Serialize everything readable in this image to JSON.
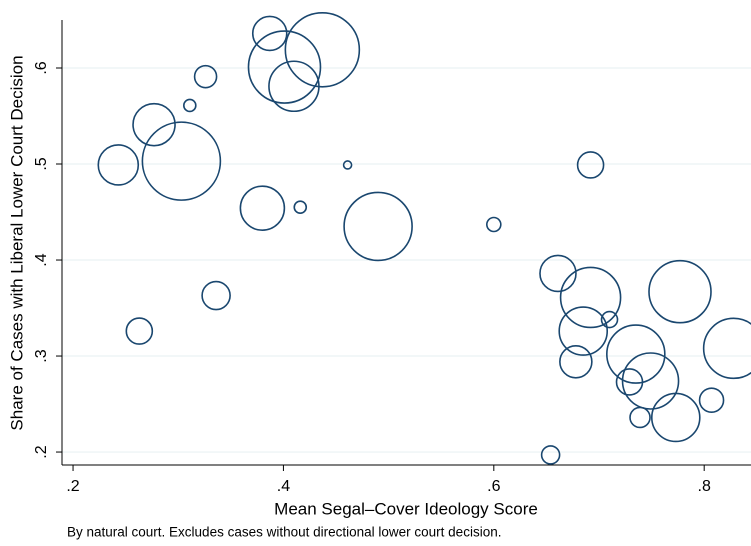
{
  "chart_data": {
    "type": "scatter",
    "x_label": "Mean Segal–Cover Ideology Score",
    "y_label": "Share of Cases with Liberal Lower Court Decision",
    "note": "By natural court. Excludes cases without directional lower court decision.",
    "color": "#1a476f",
    "grid": true,
    "xlim": [
      0.1895,
      0.8445
    ],
    "ylim": [
      0.1865,
      0.65
    ],
    "xticks": [
      {
        "value": 0.2,
        "label": ".2"
      },
      {
        "value": 0.4,
        "label": ".4"
      },
      {
        "value": 0.6,
        "label": ".6"
      },
      {
        "value": 0.8,
        "label": ".8"
      }
    ],
    "yticks": [
      {
        "value": 0.2,
        "label": ".2"
      },
      {
        "value": 0.3,
        "label": ".3"
      },
      {
        "value": 0.4,
        "label": ".4"
      },
      {
        "value": 0.5,
        "label": ".5"
      },
      {
        "value": 0.6,
        "label": ".6"
      }
    ],
    "x": [
      0.387,
      0.437,
      0.401,
      0.41,
      0.326,
      0.311,
      0.277,
      0.243,
      0.303,
      0.461,
      0.38,
      0.416,
      0.49,
      0.6,
      0.692,
      0.336,
      0.263,
      0.661,
      0.692,
      0.71,
      0.777,
      0.685,
      0.678,
      0.735,
      0.828,
      0.729,
      0.749,
      0.807,
      0.773,
      0.739,
      0.654
    ],
    "y": [
      0.636,
      0.619,
      0.601,
      0.581,
      0.591,
      0.561,
      0.541,
      0.499,
      0.503,
      0.499,
      0.454,
      0.455,
      0.435,
      0.437,
      0.499,
      0.363,
      0.326,
      0.386,
      0.361,
      0.338,
      0.367,
      0.326,
      0.294,
      0.302,
      0.308,
      0.273,
      0.274,
      0.254,
      0.236,
      0.236,
      0.197
    ],
    "sizes": [
      289,
      1369,
      1296,
      625,
      121,
      36,
      441,
      400,
      1521,
      16,
      484,
      36,
      1156,
      49,
      169,
      196,
      169,
      324,
      900,
      64,
      961,
      576,
      256,
      841,
      900,
      169,
      784,
      144,
      576,
      100,
      81
    ]
  }
}
